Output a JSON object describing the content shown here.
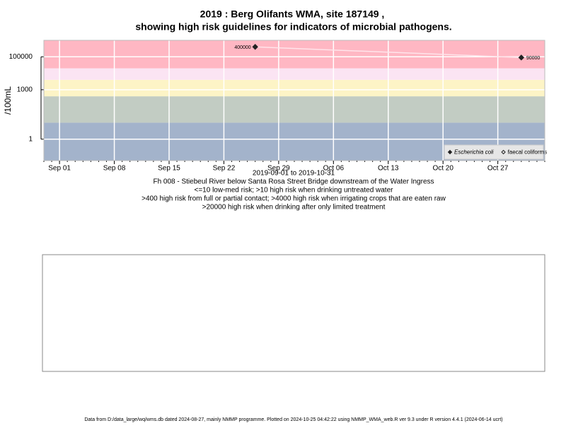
{
  "chart_data": {
    "type": "scatter",
    "title": [
      "2019 : Berg Olifants WMA, site 187149 ,",
      "showing high risk guidelines for indicators of microbial pathogens."
    ],
    "y_label": "/100mL",
    "log_y": true,
    "grid": true,
    "ylim": [
      0.05,
      1000000
    ],
    "yticks": [
      1,
      1000,
      100000
    ],
    "xlim": [
      "2019-08-30",
      "2019-11-02"
    ],
    "xticks": [
      {
        "value": "2019-09-01",
        "label": "Sep 01"
      },
      {
        "value": "2019-09-08",
        "label": "Sep 08"
      },
      {
        "value": "2019-09-15",
        "label": "Sep 15"
      },
      {
        "value": "2019-09-22",
        "label": "Sep 22"
      },
      {
        "value": "2019-09-29",
        "label": "Sep 29"
      },
      {
        "value": "2019-10-06",
        "label": "Oct 06"
      },
      {
        "value": "2019-10-13",
        "label": "Oct 13"
      },
      {
        "value": "2019-10-20",
        "label": "Oct 20"
      },
      {
        "value": "2019-10-27",
        "label": "Oct 27"
      }
    ],
    "thresholds": [
      10,
      400,
      4000,
      20000
    ],
    "band_colors": [
      "#a3b3cb",
      "#c2ccc3",
      "#fdf4c6",
      "#fbe4f3",
      "#ffb7c3"
    ],
    "line_color": "#ffe4ea",
    "legend_position": "bottom-right",
    "series": [
      {
        "name": "Escherichia coli",
        "color": "#222222",
        "marker": "filled-diamond",
        "x": [
          "2019-09-26",
          "2019-10-30"
        ],
        "values": [
          400000,
          90000
        ]
      },
      {
        "name": "faecal coliforms",
        "color": "#222222",
        "marker": "open-diamond",
        "x": [],
        "values": []
      }
    ],
    "notes": [
      "2019-09-01 to 2019-10-31",
      "Fh 008 - Stiebeul River below Santa Rosa Street Bridge downstream of the Water Ingress",
      "<=10 low-med risk; >10 high risk when drinking untreated water",
      ">400 high risk from full or partial contact; >4000 high risk when irrigating crops that are eaten raw",
      ">20000 high risk when drinking after only limited treatment"
    ],
    "footer": "Data from D:/data_large/wq/wms.db dated 2024-08-27, mainly NMMP programme. Plotted on 2024-10-25 04:42:22 using NMMP_WMA_web.R ver 9.3 under R version 4.4.1 (2024-06-14 ucrt)"
  }
}
